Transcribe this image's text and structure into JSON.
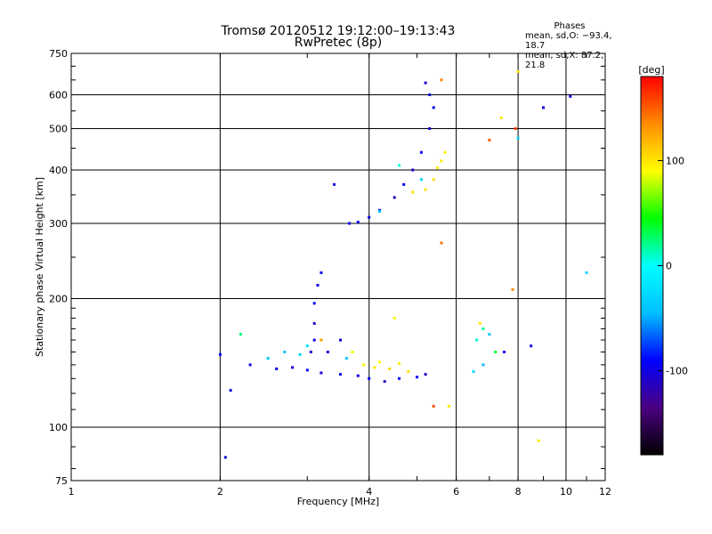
{
  "chart_data": {
    "type": "scatter",
    "title_line1": "Tromsø 20120512 19:12:00–19:13:43",
    "title_line2": "RwPretec (8p)",
    "xlabel": "Frequency [MHz]",
    "ylabel": "Stationary phase Virtual Height [km]",
    "x_scale": "log",
    "y_scale": "log",
    "xlim": [
      1,
      12
    ],
    "ylim": [
      75,
      750
    ],
    "x_ticks": [
      1,
      2,
      4,
      6,
      8,
      10,
      12
    ],
    "y_ticks": [
      75,
      100,
      200,
      300,
      400,
      500,
      600,
      750
    ],
    "grid": true,
    "phases": {
      "title": "Phases",
      "line1": "mean, sd,O: −93.4, 18.7",
      "line2": "mean, sd,X:  87.2, 21.8"
    },
    "colorbar": {
      "label": "[deg]",
      "range": [
        -180,
        180
      ],
      "ticks": [
        -100,
        0,
        100
      ],
      "colors": [
        "#000000",
        "#4b0082",
        "#0000ff",
        "#00bfff",
        "#00ffff",
        "#00ff00",
        "#ffff00",
        "#ff8c00",
        "#ff0000"
      ]
    },
    "series": [
      {
        "values": [
          [
            2.6,
            137,
            -98
          ],
          [
            2.8,
            138,
            -105
          ],
          [
            3.0,
            136,
            -90
          ],
          [
            3.2,
            134,
            -102
          ],
          [
            3.5,
            133,
            -96
          ],
          [
            3.8,
            132,
            -100
          ],
          [
            4.0,
            130,
            -92
          ],
          [
            4.3,
            128,
            -110
          ],
          [
            4.6,
            130,
            -88
          ],
          [
            5.0,
            131,
            -95
          ],
          [
            5.2,
            133,
            -103
          ],
          [
            3.1,
            160,
            -98
          ],
          [
            3.1,
            175,
            -110
          ],
          [
            3.1,
            195,
            -92
          ],
          [
            3.15,
            215,
            -100
          ],
          [
            3.2,
            230,
            -95
          ],
          [
            3.05,
            150,
            -105
          ],
          [
            3.3,
            150,
            -97
          ],
          [
            3.5,
            160,
            -99
          ],
          [
            3.65,
            300,
            -95
          ],
          [
            3.8,
            302,
            -100
          ],
          [
            4.0,
            310,
            -98
          ],
          [
            4.2,
            322,
            -94
          ],
          [
            4.5,
            345,
            -110
          ],
          [
            4.7,
            370,
            -92
          ],
          [
            4.9,
            400,
            -105
          ],
          [
            5.1,
            440,
            -96
          ],
          [
            5.3,
            500,
            -101
          ],
          [
            5.4,
            560,
            -93
          ],
          [
            5.3,
            600,
            -99
          ],
          [
            5.2,
            640,
            -104
          ],
          [
            2.3,
            140,
            -97
          ],
          [
            2.1,
            122,
            -100
          ],
          [
            2.05,
            85,
            -100
          ],
          [
            2.0,
            148,
            -92
          ],
          [
            3.4,
            370,
            -100
          ],
          [
            9.0,
            560,
            -100
          ],
          [
            10.2,
            595,
            -100
          ],
          [
            7.5,
            150,
            -95
          ],
          [
            8.5,
            155,
            -100
          ]
        ]
      },
      {
        "values": [
          [
            2.7,
            150,
            -40
          ],
          [
            2.9,
            148,
            -30
          ],
          [
            3.0,
            155,
            -20
          ],
          [
            4.2,
            320,
            -35
          ],
          [
            5.1,
            380,
            -25
          ],
          [
            6.8,
            140,
            -45
          ],
          [
            7.0,
            165,
            -38
          ],
          [
            8.0,
            475,
            -30
          ],
          [
            11.0,
            230,
            -25
          ],
          [
            2.5,
            145,
            -35
          ],
          [
            3.6,
            145,
            -40
          ],
          [
            6.5,
            135,
            -22
          ]
        ]
      },
      {
        "values": [
          [
            6.8,
            170,
            20
          ],
          [
            7.2,
            150,
            35
          ],
          [
            6.6,
            160,
            10
          ],
          [
            4.6,
            410,
            5
          ],
          [
            2.2,
            165,
            25
          ]
        ]
      },
      {
        "values": [
          [
            3.9,
            140,
            95
          ],
          [
            4.1,
            138,
            100
          ],
          [
            4.2,
            142,
            88
          ],
          [
            4.4,
            137,
            105
          ],
          [
            4.6,
            141,
            97
          ],
          [
            4.8,
            135,
            102
          ],
          [
            4.5,
            180,
            95
          ],
          [
            5.2,
            360,
            100
          ],
          [
            5.4,
            380,
            104
          ],
          [
            5.5,
            405,
            97
          ],
          [
            5.6,
            420,
            99
          ],
          [
            5.7,
            440,
            96
          ],
          [
            4.9,
            355,
            101
          ],
          [
            6.7,
            175,
            100
          ],
          [
            3.7,
            150,
            90
          ],
          [
            8.0,
            680,
            100
          ],
          [
            8.8,
            93,
            100
          ],
          [
            7.4,
            530,
            100
          ],
          [
            5.8,
            112,
            100
          ]
        ]
      },
      {
        "values": [
          [
            5.6,
            650,
            140
          ],
          [
            7.0,
            470,
            150
          ],
          [
            7.9,
            500,
            160
          ],
          [
            5.6,
            270,
            145
          ],
          [
            3.2,
            160,
            130
          ],
          [
            7.8,
            210,
            135
          ],
          [
            5.4,
            112,
            155
          ]
        ]
      }
    ]
  }
}
